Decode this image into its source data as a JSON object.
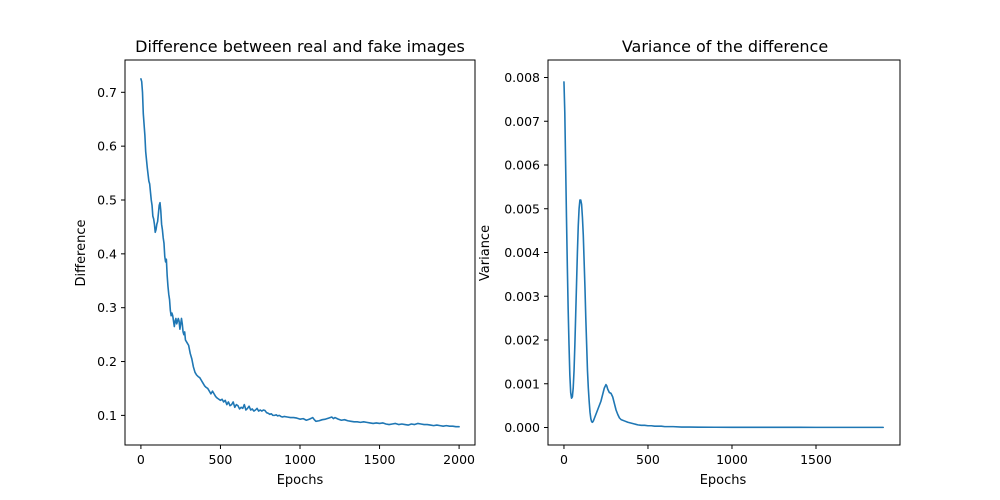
{
  "chart_data": [
    {
      "type": "line",
      "title": "Difference between real and fake images",
      "xlabel": "Epochs",
      "ylabel": "Difference",
      "xlim": [
        -100,
        2100
      ],
      "ylim": [
        0.045,
        0.76
      ],
      "xticks": [
        0,
        500,
        1000,
        1500,
        2000
      ],
      "yticks": [
        0.1,
        0.2,
        0.3,
        0.4,
        0.5,
        0.6,
        0.7
      ],
      "grid": false,
      "series": [
        {
          "color": "#1f77b4",
          "points": [
            [
              0,
              0.725
            ],
            [
              5,
              0.72
            ],
            [
              10,
              0.7
            ],
            [
              15,
              0.66
            ],
            [
              20,
              0.64
            ],
            [
              25,
              0.62
            ],
            [
              30,
              0.59
            ],
            [
              40,
              0.56
            ],
            [
              50,
              0.535
            ],
            [
              55,
              0.53
            ],
            [
              60,
              0.515
            ],
            [
              65,
              0.5
            ],
            [
              70,
              0.49
            ],
            [
              75,
              0.47
            ],
            [
              80,
              0.465
            ],
            [
              85,
              0.455
            ],
            [
              90,
              0.44
            ],
            [
              95,
              0.445
            ],
            [
              100,
              0.455
            ],
            [
              105,
              0.46
            ],
            [
              110,
              0.475
            ],
            [
              115,
              0.49
            ],
            [
              120,
              0.495
            ],
            [
              125,
              0.48
            ],
            [
              130,
              0.455
            ],
            [
              135,
              0.445
            ],
            [
              140,
              0.43
            ],
            [
              145,
              0.42
            ],
            [
              150,
              0.395
            ],
            [
              155,
              0.385
            ],
            [
              160,
              0.39
            ],
            [
              165,
              0.36
            ],
            [
              170,
              0.34
            ],
            [
              175,
              0.325
            ],
            [
              180,
              0.315
            ],
            [
              185,
              0.295
            ],
            [
              190,
              0.285
            ],
            [
              195,
              0.29
            ],
            [
              200,
              0.285
            ],
            [
              205,
              0.275
            ],
            [
              210,
              0.265
            ],
            [
              215,
              0.275
            ],
            [
              220,
              0.28
            ],
            [
              225,
              0.27
            ],
            [
              230,
              0.275
            ],
            [
              235,
              0.28
            ],
            [
              240,
              0.275
            ],
            [
              245,
              0.26
            ],
            [
              250,
              0.27
            ],
            [
              255,
              0.28
            ],
            [
              260,
              0.27
            ],
            [
              265,
              0.255
            ],
            [
              270,
              0.25
            ],
            [
              275,
              0.255
            ],
            [
              280,
              0.24
            ],
            [
              290,
              0.235
            ],
            [
              300,
              0.23
            ],
            [
              310,
              0.215
            ],
            [
              320,
              0.205
            ],
            [
              330,
              0.19
            ],
            [
              340,
              0.18
            ],
            [
              350,
              0.175
            ],
            [
              360,
              0.172
            ],
            [
              370,
              0.17
            ],
            [
              380,
              0.165
            ],
            [
              390,
              0.16
            ],
            [
              400,
              0.155
            ],
            [
              410,
              0.152
            ],
            [
              420,
              0.15
            ],
            [
              430,
              0.145
            ],
            [
              440,
              0.14
            ],
            [
              450,
              0.145
            ],
            [
              460,
              0.14
            ],
            [
              470,
              0.135
            ],
            [
              480,
              0.132
            ],
            [
              490,
              0.13
            ],
            [
              500,
              0.128
            ],
            [
              510,
              0.13
            ],
            [
              520,
              0.125
            ],
            [
              530,
              0.128
            ],
            [
              540,
              0.12
            ],
            [
              550,
              0.125
            ],
            [
              560,
              0.118
            ],
            [
              570,
              0.12
            ],
            [
              580,
              0.125
            ],
            [
              590,
              0.115
            ],
            [
              600,
              0.12
            ],
            [
              610,
              0.118
            ],
            [
              620,
              0.112
            ],
            [
              630,
              0.115
            ],
            [
              640,
              0.113
            ],
            [
              650,
              0.12
            ],
            [
              660,
              0.11
            ],
            [
              670,
              0.113
            ],
            [
              680,
              0.117
            ],
            [
              690,
              0.11
            ],
            [
              700,
              0.112
            ],
            [
              710,
              0.108
            ],
            [
              720,
              0.11
            ],
            [
              730,
              0.113
            ],
            [
              740,
              0.108
            ],
            [
              750,
              0.11
            ],
            [
              760,
              0.108
            ],
            [
              770,
              0.11
            ],
            [
              780,
              0.109
            ],
            [
              790,
              0.105
            ],
            [
              800,
              0.104
            ],
            [
              810,
              0.102
            ],
            [
              820,
              0.103
            ],
            [
              830,
              0.1
            ],
            [
              840,
              0.1
            ],
            [
              850,
              0.101
            ],
            [
              860,
              0.099
            ],
            [
              870,
              0.1
            ],
            [
              880,
              0.098
            ],
            [
              890,
              0.097
            ],
            [
              900,
              0.098
            ],
            [
              920,
              0.097
            ],
            [
              940,
              0.096
            ],
            [
              960,
              0.096
            ],
            [
              980,
              0.095
            ],
            [
              1000,
              0.093
            ],
            [
              1020,
              0.094
            ],
            [
              1040,
              0.091
            ],
            [
              1060,
              0.093
            ],
            [
              1080,
              0.096
            ],
            [
              1090,
              0.092
            ],
            [
              1100,
              0.089
            ],
            [
              1120,
              0.09
            ],
            [
              1140,
              0.092
            ],
            [
              1160,
              0.093
            ],
            [
              1180,
              0.095
            ],
            [
              1200,
              0.097
            ],
            [
              1210,
              0.094
            ],
            [
              1220,
              0.096
            ],
            [
              1240,
              0.093
            ],
            [
              1260,
              0.091
            ],
            [
              1280,
              0.092
            ],
            [
              1300,
              0.09
            ],
            [
              1320,
              0.089
            ],
            [
              1340,
              0.088
            ],
            [
              1360,
              0.088
            ],
            [
              1380,
              0.087
            ],
            [
              1400,
              0.088
            ],
            [
              1420,
              0.087
            ],
            [
              1440,
              0.086
            ],
            [
              1460,
              0.085
            ],
            [
              1480,
              0.086
            ],
            [
              1500,
              0.085
            ],
            [
              1520,
              0.086
            ],
            [
              1540,
              0.084
            ],
            [
              1560,
              0.083
            ],
            [
              1580,
              0.084
            ],
            [
              1600,
              0.085
            ],
            [
              1620,
              0.083
            ],
            [
              1640,
              0.084
            ],
            [
              1660,
              0.083
            ],
            [
              1680,
              0.082
            ],
            [
              1700,
              0.084
            ],
            [
              1720,
              0.083
            ],
            [
              1740,
              0.085
            ],
            [
              1760,
              0.084
            ],
            [
              1780,
              0.083
            ],
            [
              1800,
              0.083
            ],
            [
              1820,
              0.082
            ],
            [
              1840,
              0.081
            ],
            [
              1860,
              0.082
            ],
            [
              1880,
              0.081
            ],
            [
              1900,
              0.08
            ],
            [
              1920,
              0.081
            ],
            [
              1940,
              0.08
            ],
            [
              1960,
              0.08
            ],
            [
              1980,
              0.079
            ],
            [
              2000,
              0.079
            ]
          ]
        }
      ]
    },
    {
      "type": "line",
      "title": "Variance of the difference",
      "xlabel": "Epochs",
      "ylabel": "Variance",
      "xlim": [
        -95,
        2000
      ],
      "ylim": [
        -0.0004,
        0.0084
      ],
      "xticks": [
        0,
        500,
        1000,
        1500
      ],
      "yticks": [
        0,
        0.001,
        0.002,
        0.003,
        0.004,
        0.005,
        0.006,
        0.007,
        0.008
      ],
      "ytick_labels": [
        "0.000",
        "0.001",
        "0.002",
        "0.003",
        "0.004",
        "0.005",
        "0.006",
        "0.007",
        "0.008"
      ],
      "grid": false,
      "series": [
        {
          "color": "#1f77b4",
          "points": [
            [
              0,
              0.0079
            ],
            [
              5,
              0.0072
            ],
            [
              10,
              0.006
            ],
            [
              15,
              0.0048
            ],
            [
              20,
              0.0037
            ],
            [
              25,
              0.0027
            ],
            [
              30,
              0.0019
            ],
            [
              35,
              0.0012
            ],
            [
              40,
              0.0008
            ],
            [
              45,
              0.00067
            ],
            [
              50,
              0.0007
            ],
            [
              55,
              0.0009
            ],
            [
              60,
              0.0013
            ],
            [
              65,
              0.0019
            ],
            [
              70,
              0.0026
            ],
            [
              75,
              0.0033
            ],
            [
              80,
              0.004
            ],
            [
              85,
              0.0046
            ],
            [
              90,
              0.005
            ],
            [
              95,
              0.0052
            ],
            [
              100,
              0.0052
            ],
            [
              105,
              0.0051
            ],
            [
              110,
              0.0048
            ],
            [
              115,
              0.0044
            ],
            [
              120,
              0.0038
            ],
            [
              125,
              0.0032
            ],
            [
              130,
              0.0025
            ],
            [
              135,
              0.0019
            ],
            [
              140,
              0.0013
            ],
            [
              145,
              0.0009
            ],
            [
              150,
              0.0006
            ],
            [
              155,
              0.00035
            ],
            [
              160,
              0.0002
            ],
            [
              165,
              0.00013
            ],
            [
              170,
              0.00012
            ],
            [
              175,
              0.00015
            ],
            [
              180,
              0.0002
            ],
            [
              190,
              0.0003
            ],
            [
              200,
              0.0004
            ],
            [
              210,
              0.0005
            ],
            [
              220,
              0.0006
            ],
            [
              230,
              0.00075
            ],
            [
              240,
              0.0009
            ],
            [
              250,
              0.00098
            ],
            [
              255,
              0.00095
            ],
            [
              260,
              0.00088
            ],
            [
              270,
              0.0008
            ],
            [
              280,
              0.00078
            ],
            [
              290,
              0.0007
            ],
            [
              300,
              0.00055
            ],
            [
              310,
              0.0004
            ],
            [
              320,
              0.0003
            ],
            [
              330,
              0.00022
            ],
            [
              340,
              0.00018
            ],
            [
              360,
              0.00015
            ],
            [
              380,
              0.00012
            ],
            [
              400,
              0.0001
            ],
            [
              420,
              8e-05
            ],
            [
              440,
              6e-05
            ],
            [
              460,
              5e-05
            ],
            [
              480,
              5e-05
            ],
            [
              500,
              4e-05
            ],
            [
              520,
              4e-05
            ],
            [
              540,
              3e-05
            ],
            [
              560,
              3e-05
            ],
            [
              580,
              3e-05
            ],
            [
              600,
              2e-05
            ],
            [
              650,
              2e-05
            ],
            [
              700,
              1e-05
            ],
            [
              750,
              1e-05
            ],
            [
              800,
              8e-06
            ],
            [
              900,
              6e-06
            ],
            [
              1000,
              5e-06
            ],
            [
              1100,
              5e-06
            ],
            [
              1200,
              4e-06
            ],
            [
              1300,
              4e-06
            ],
            [
              1400,
              4e-06
            ],
            [
              1500,
              3e-06
            ],
            [
              1600,
              3e-06
            ],
            [
              1700,
              3e-06
            ],
            [
              1800,
              3e-06
            ],
            [
              1900,
              3e-06
            ]
          ]
        }
      ]
    }
  ]
}
